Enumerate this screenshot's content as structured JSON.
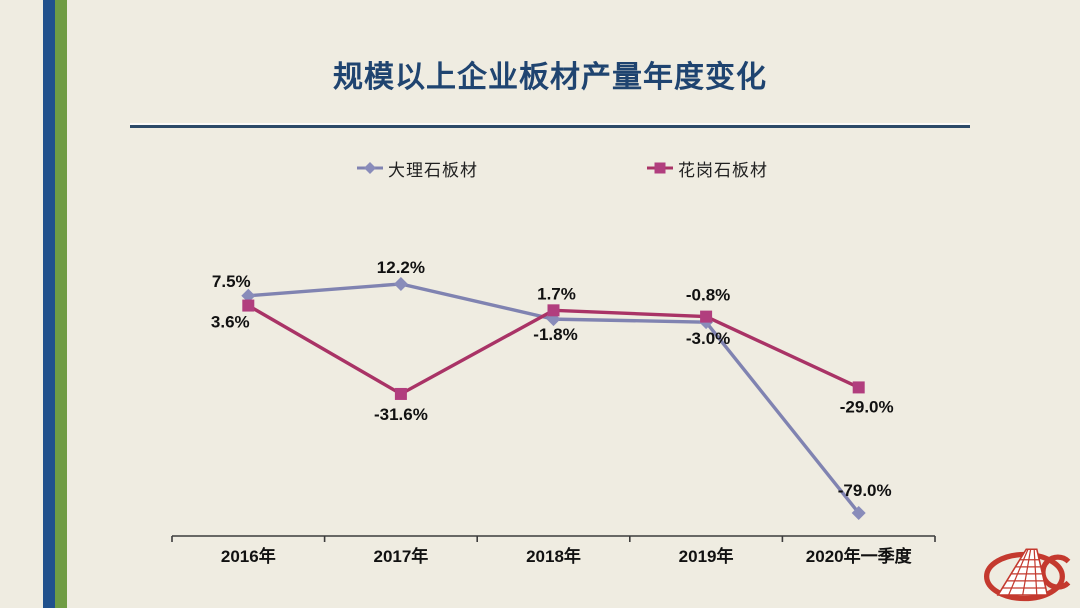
{
  "page": {
    "title": "规模以上企业板材产量年度变化",
    "background_color": "#EFECE1",
    "title_color": "#1F4470",
    "accent_bar_colors": {
      "blue": "#21518C",
      "green": "#6F9C43"
    },
    "logo_name": "china-stone-material-association-emblem",
    "logo_color": "#C4392E"
  },
  "chart_data": {
    "type": "line",
    "title": "规模以上企业板材产量年度变化",
    "categories": [
      "2016年",
      "2017年",
      "2018年",
      "2019年",
      "2020年一季度"
    ],
    "unit": "%",
    "ylim": [
      -85,
      20
    ],
    "grid": false,
    "legend_position": "top",
    "axis_color": "#3C3C3C",
    "label_color": "#111111",
    "series": [
      {
        "name": "大理石板材",
        "color": "#8083B1",
        "marker": "diamond",
        "marker_color": "#898CBA",
        "values": [
          7.5,
          12.2,
          -1.8,
          -3.0,
          -79.0
        ],
        "labels": [
          "7.5%",
          "12.2%",
          "-1.8%",
          "-3.0%",
          "-79.0%"
        ],
        "label_offsets": [
          [
            -17,
            -15
          ],
          [
            0,
            -17
          ],
          [
            2,
            15
          ],
          [
            2,
            16
          ],
          [
            6,
            -23
          ]
        ]
      },
      {
        "name": "花岗石板材",
        "color": "#A93366",
        "marker": "square",
        "marker_color": "#B13E7E",
        "values": [
          3.6,
          -31.6,
          1.7,
          -0.8,
          -29.0
        ],
        "labels": [
          "3.6%",
          "-31.6%",
          "1.7%",
          "-0.8%",
          "-29.0%"
        ],
        "label_offsets": [
          [
            -18,
            16
          ],
          [
            0,
            20
          ],
          [
            3,
            -17
          ],
          [
            2,
            -22
          ],
          [
            8,
            19
          ]
        ]
      }
    ]
  }
}
